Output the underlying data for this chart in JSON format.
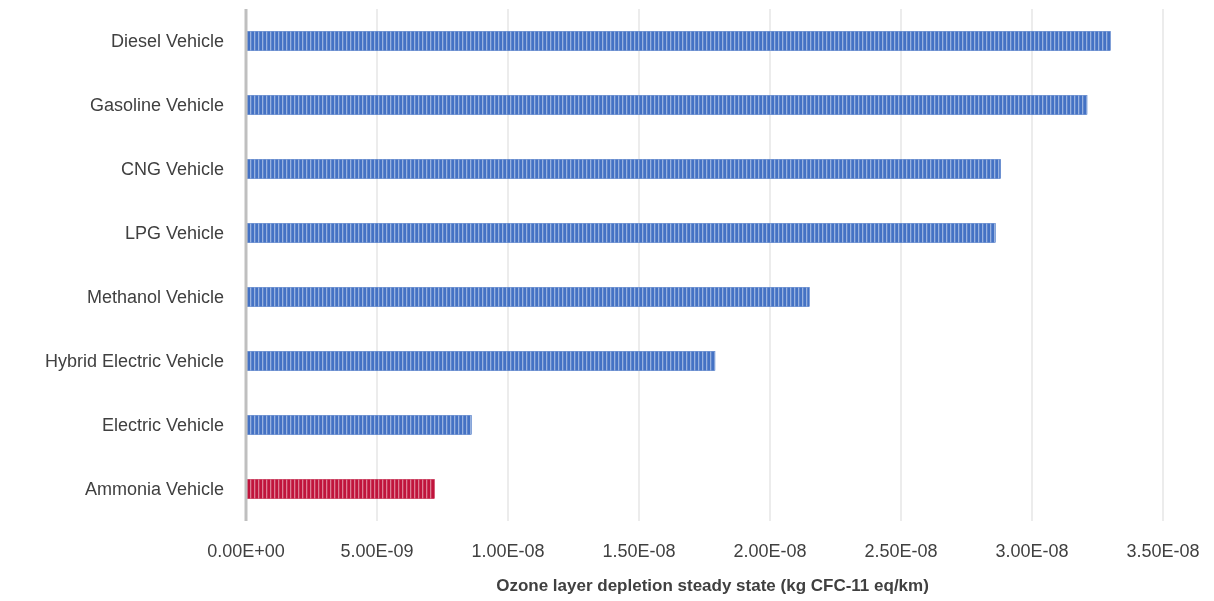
{
  "chart_data": {
    "type": "bar",
    "orientation": "horizontal",
    "xlabel": "Ozone layer depletion steady state (kg CFC-11 eq/km)",
    "categories": [
      "Diesel Vehicle",
      "Gasoline Vehicle",
      "CNG Vehicle",
      "LPG Vehicle",
      "Methanol Vehicle",
      "Hybrid Electric Vehicle",
      "Electric Vehicle",
      "Ammonia Vehicle"
    ],
    "values": [
      3.3e-08,
      3.21e-08,
      2.88e-08,
      2.86e-08,
      2.15e-08,
      1.79e-08,
      8.6e-09,
      7.2e-09
    ],
    "colors": [
      "#4472c4",
      "#4472c4",
      "#4472c4",
      "#4472c4",
      "#4472c4",
      "#4472c4",
      "#4472c4",
      "#c0143c"
    ],
    "xlim": [
      0,
      3.5e-08
    ],
    "xticks": [
      {
        "value": 0,
        "label": "0.00E+00"
      },
      {
        "value": 5e-09,
        "label": "5.00E-09"
      },
      {
        "value": 1e-08,
        "label": "1.00E-08"
      },
      {
        "value": 1.5e-08,
        "label": "1.50E-08"
      },
      {
        "value": 2e-08,
        "label": "2.00E-08"
      },
      {
        "value": 2.5e-08,
        "label": "2.50E-08"
      },
      {
        "value": 3e-08,
        "label": "3.00E-08"
      },
      {
        "value": 3.5e-08,
        "label": "3.50E-08"
      }
    ],
    "grid": "x"
  }
}
